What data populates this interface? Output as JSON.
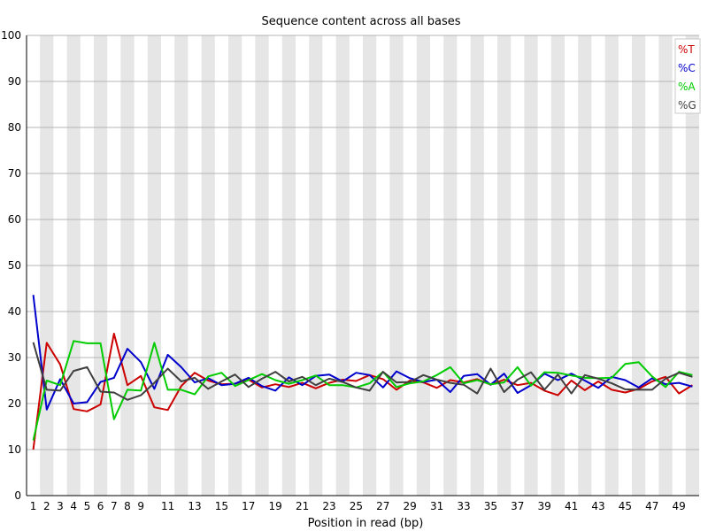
{
  "chart_data": {
    "type": "line",
    "title": "Sequence content across all bases",
    "xlabel": "Position in read (bp)",
    "ylabel": "",
    "ylim": [
      0,
      100
    ],
    "yticks": [
      0,
      10,
      20,
      30,
      40,
      50,
      60,
      70,
      80,
      90,
      100
    ],
    "x": [
      1,
      2,
      3,
      4,
      5,
      6,
      7,
      8,
      9,
      10,
      11,
      12,
      13,
      14,
      15,
      16,
      17,
      18,
      19,
      20,
      21,
      22,
      23,
      24,
      25,
      26,
      27,
      28,
      29,
      30,
      31,
      32,
      33,
      34,
      35,
      36,
      37,
      38,
      39,
      40,
      41,
      42,
      43,
      44,
      45,
      46,
      47,
      48,
      49,
      50
    ],
    "xtick_labels": [
      "1",
      "2",
      "3",
      "4",
      "5",
      "6",
      "7",
      "8",
      "9",
      "11",
      "13",
      "15",
      "17",
      "19",
      "21",
      "23",
      "25",
      "27",
      "29",
      "31",
      "33",
      "35",
      "37",
      "39",
      "41",
      "43",
      "45",
      "47",
      "49"
    ],
    "xtick_positions": [
      1,
      2,
      3,
      4,
      5,
      6,
      7,
      8,
      9,
      11,
      13,
      15,
      17,
      19,
      21,
      23,
      25,
      27,
      29,
      31,
      33,
      35,
      37,
      39,
      41,
      43,
      45,
      47,
      49
    ],
    "grid": "horizontal lines, alternating vertical bands",
    "legend_position": "top-right",
    "series": [
      {
        "name": "%T",
        "color": "#cc0000",
        "values": [
          10,
          33.2,
          28.5,
          18.8,
          18.3,
          19.8,
          35.2,
          24,
          26,
          19.2,
          18.6,
          23.8,
          26.7,
          25,
          24.2,
          24.3,
          25.2,
          23.5,
          24.2,
          23.6,
          24.5,
          23.3,
          24.5,
          25.2,
          24.9,
          26.2,
          25.3,
          23,
          25,
          24.6,
          23.4,
          25.1,
          24.6,
          25.3,
          24.1,
          25.2,
          24,
          24.5,
          22.8,
          21.8,
          25,
          22.9,
          24.8,
          23,
          22.4,
          23.2,
          24.8,
          25.8,
          22.2,
          24
        ]
      },
      {
        "name": "%C",
        "color": "#0000cc",
        "values": [
          43.6,
          18.7,
          25.3,
          20,
          20.3,
          24.7,
          25.6,
          31.9,
          29,
          23.2,
          30.6,
          27.9,
          24.6,
          25.5,
          24,
          24.3,
          25.6,
          23.8,
          22.8,
          25.7,
          24,
          26,
          26.3,
          24.8,
          26.7,
          26.2,
          23.5,
          27,
          25.5,
          24.7,
          25.2,
          22.5,
          26,
          26.4,
          24.1,
          26.5,
          22.3,
          24,
          26.5,
          25.1,
          26.5,
          25,
          23.4,
          25.8,
          25.1,
          23.5,
          25.5,
          24.2,
          24.5,
          23.7
        ]
      },
      {
        "name": "%A",
        "color": "#00cc00",
        "values": [
          12,
          25,
          24,
          33.6,
          33.1,
          33.1,
          16.6,
          23,
          22.8,
          33.2,
          23,
          23,
          22,
          25.9,
          26.7,
          23.8,
          25.1,
          26.4,
          25.1,
          24.3,
          25.1,
          26.1,
          24,
          24,
          23.5,
          24.4,
          26.9,
          23.6,
          24.4,
          24.8,
          26.2,
          27.9,
          24.4,
          25.1,
          24.2,
          24.6,
          27.9,
          23.9,
          26.8,
          26.7,
          26.1,
          25.6,
          25.5,
          25.6,
          28.6,
          29,
          25.9,
          23.6,
          26.9,
          26.2
        ]
      },
      {
        "name": "%G",
        "color": "#404040",
        "values": [
          33.3,
          23,
          22.8,
          27.1,
          27.9,
          22.6,
          22.4,
          20.8,
          21.8,
          24.5,
          27.6,
          24.8,
          25.6,
          23.2,
          24.8,
          26.3,
          23.6,
          25.4,
          26.9,
          24.8,
          25.8,
          24,
          25.4,
          24.7,
          23.5,
          22.8,
          26.9,
          24.6,
          24.7,
          26.2,
          25.2,
          24.5,
          24.1,
          22.2,
          27.6,
          22.5,
          25.2,
          26.8,
          23,
          26.3,
          22.2,
          26.2,
          25.4,
          24.4,
          23.1,
          23,
          23,
          25.4,
          26.7,
          25.8
        ]
      }
    ]
  }
}
